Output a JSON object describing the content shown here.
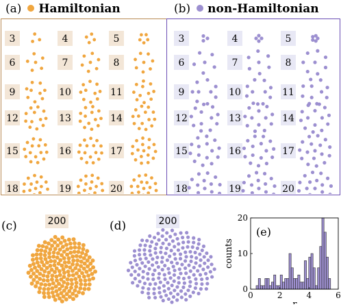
{
  "colors": {
    "hamiltonian": "#f0a63f",
    "non_hamiltonian": "#9c8fd0",
    "panel_a_border": "#b98b55",
    "panel_b_border": "#6b4fb5",
    "label_bg_a": "#f3e6d7",
    "label_bg_b": "#e8e8f5",
    "hist_bar": "#9d8fcf"
  },
  "panel_a": {
    "letter": "(a)",
    "title": "Hamiltonian",
    "labels": [
      "3",
      "4",
      "5",
      "6",
      "7",
      "8",
      "9",
      "10",
      "11",
      "12",
      "13",
      "14",
      "15",
      "16",
      "17",
      "18",
      "19",
      "20"
    ]
  },
  "panel_b": {
    "letter": "(b)",
    "title": "non-Hamiltonian",
    "labels": [
      "3",
      "4",
      "5",
      "6",
      "7",
      "8",
      "9",
      "10",
      "11",
      "12",
      "13",
      "14",
      "15",
      "16",
      "17",
      "18",
      "19",
      "20"
    ]
  },
  "panel_c": {
    "letter": "(c)",
    "count_label": "200"
  },
  "panel_d": {
    "letter": "(d)",
    "count_label": "200"
  },
  "panel_e": {
    "letter": "(e)",
    "chart_data": {
      "type": "bar",
      "xlabel": "r",
      "ylabel": "counts",
      "xlim": [
        0,
        6
      ],
      "ylim": [
        0,
        20
      ],
      "xticks": [
        0,
        2,
        4,
        6
      ],
      "yticks": [
        0,
        10,
        20
      ],
      "bins": [
        0.45,
        0.6,
        0.75,
        0.9,
        1.05,
        1.2,
        1.35,
        1.5,
        1.65,
        1.8,
        1.95,
        2.1,
        2.25,
        2.4,
        2.55,
        2.7,
        2.85,
        3.0,
        3.15,
        3.3,
        3.45,
        3.6,
        3.75,
        3.9,
        4.05,
        4.2,
        4.35,
        4.5,
        4.65,
        4.8,
        4.95,
        5.1,
        5.25,
        5.4
      ],
      "values": [
        1,
        3,
        1,
        1,
        3,
        3,
        1,
        2,
        4,
        1,
        1,
        4,
        2,
        3,
        3,
        10,
        6,
        3,
        3,
        4,
        2,
        2,
        8,
        3,
        9,
        10,
        6,
        1,
        6,
        12,
        20,
        16,
        9,
        3
      ]
    }
  }
}
